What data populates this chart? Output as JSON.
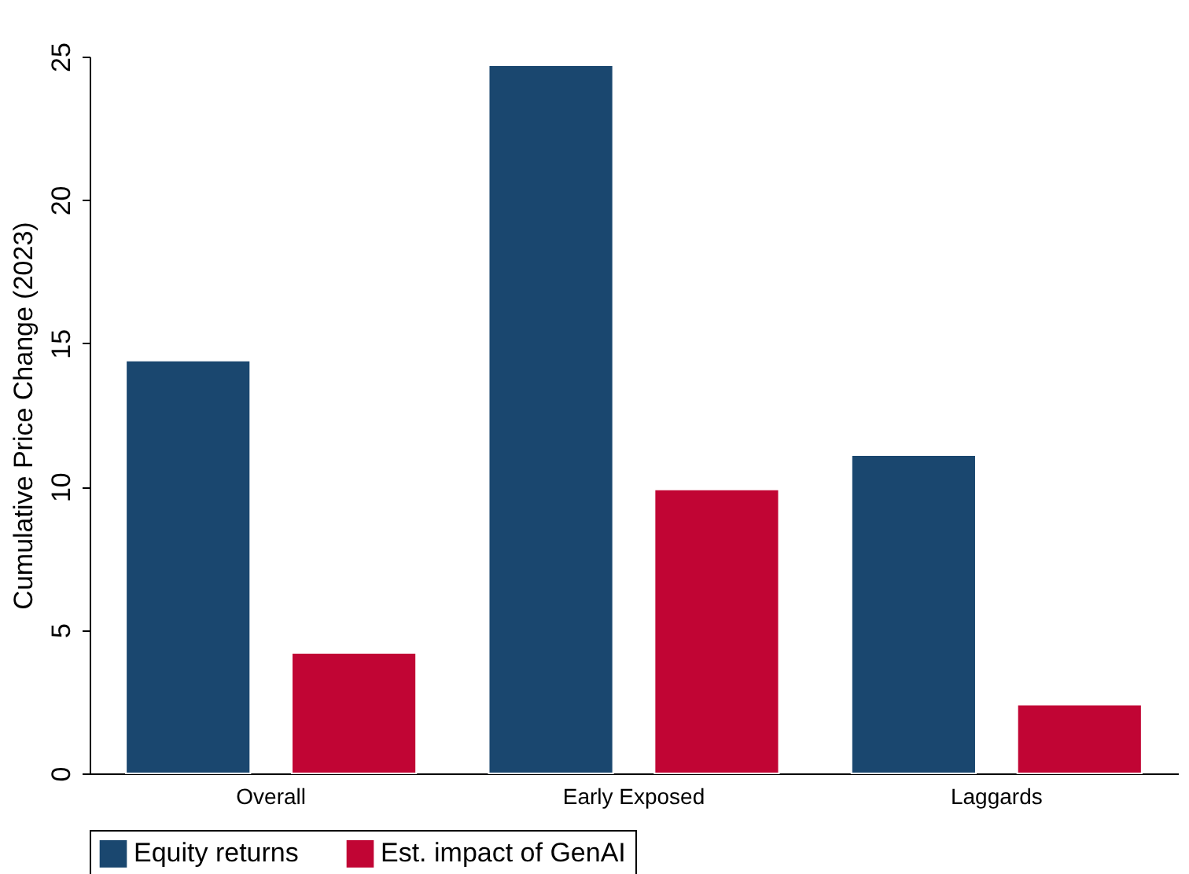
{
  "chart_data": {
    "type": "bar",
    "ylabel": "Cumulative Price Change (2023)",
    "categories": [
      "Overall",
      "Early Exposed",
      "Laggards"
    ],
    "series": [
      {
        "name": "Equity returns",
        "color": "#1a476f",
        "values": [
          14.4,
          24.7,
          11.1
        ]
      },
      {
        "name": "Est. impact of GenAI",
        "color": "#c10534",
        "values": [
          4.2,
          9.9,
          2.4
        ]
      }
    ],
    "ylim": [
      0,
      25
    ],
    "yticks": [
      0,
      5,
      10,
      15,
      20,
      25
    ],
    "grid": false,
    "legend": "bottom"
  }
}
